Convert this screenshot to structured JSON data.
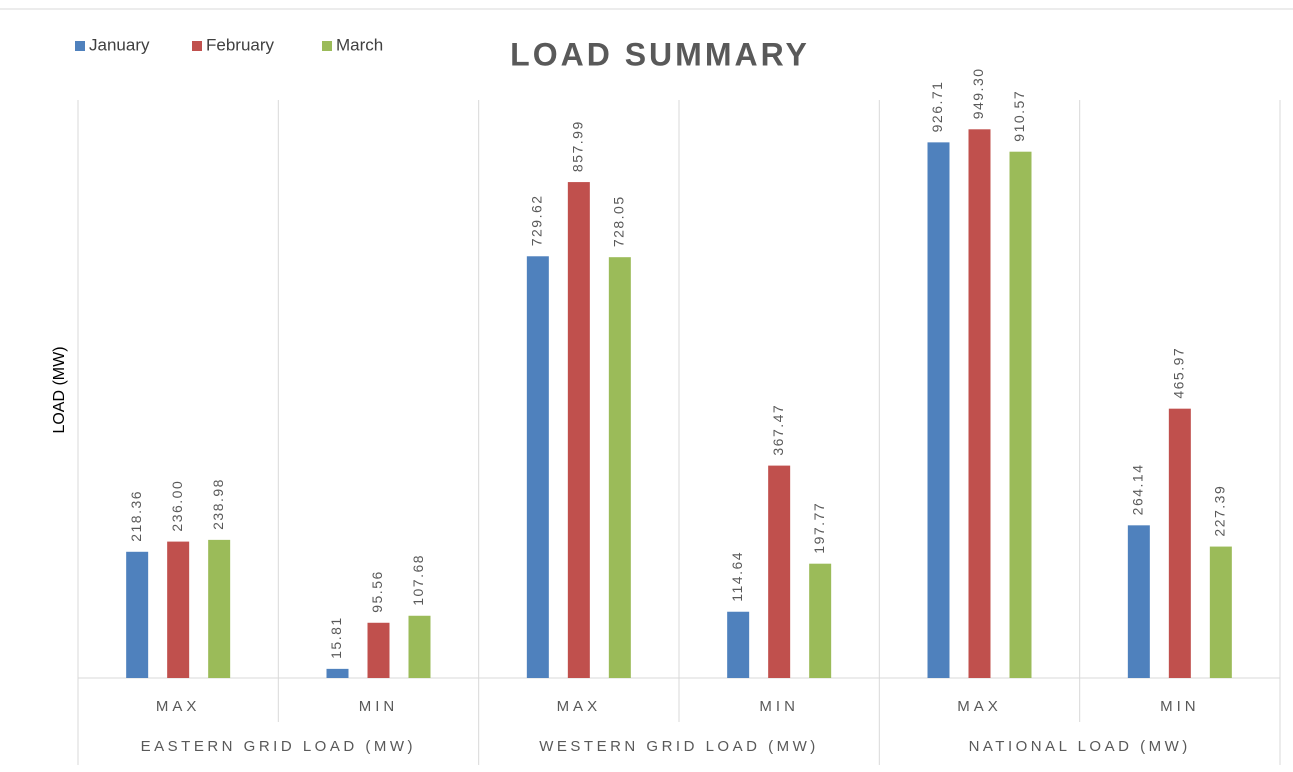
{
  "chart_data": {
    "type": "bar",
    "title": "LOAD SUMMARY",
    "y_label": "LOAD (MW)",
    "categories": [
      "MAX",
      "MIN",
      "MAX",
      "MIN",
      "MAX",
      "MIN"
    ],
    "groups": [
      "EASTERN GRID LOAD (MW)",
      "WESTERN GRID LOAD (MW)",
      "NATIONAL LOAD (MW)"
    ],
    "series": [
      {
        "name": "January",
        "color": "#4f81bd",
        "values": [
          218.36,
          15.81,
          729.62,
          114.64,
          926.71,
          264.14
        ],
        "value_labels": [
          "218.36",
          "15.81",
          "729.62",
          "114.64",
          "926.71",
          "264.14"
        ]
      },
      {
        "name": "February",
        "color": "#c0504d",
        "values": [
          236.0,
          95.56,
          857.99,
          367.47,
          949.3,
          465.97
        ],
        "value_labels": [
          "236.00",
          "95.56",
          "857.99",
          "367.47",
          "949.30",
          "465.97"
        ]
      },
      {
        "name": "March",
        "color": "#9bbb59",
        "values": [
          238.98,
          107.68,
          728.05,
          197.77,
          910.57,
          227.39
        ],
        "value_labels": [
          "238.98",
          "107.68",
          "728.05",
          "197.77",
          "910.57",
          "227.39"
        ]
      }
    ],
    "ylim": [
      0,
      1000
    ],
    "legend": "top-left"
  }
}
